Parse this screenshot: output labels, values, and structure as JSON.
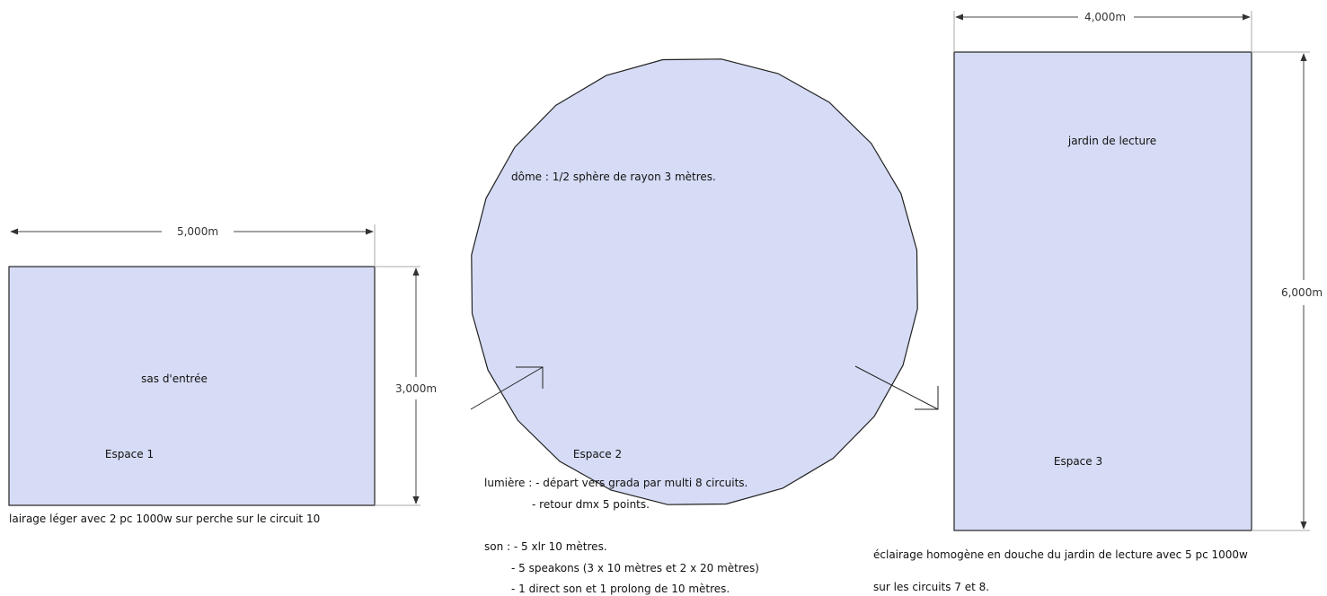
{
  "colors": {
    "room_fill": "#d6dcf5",
    "stroke": "#222222",
    "dimension": "#444444"
  },
  "espace1": {
    "dimension_width": "5,000m",
    "dimension_height": "3,000m",
    "name": "sas d'entrée",
    "label": "Espace 1",
    "note": "lairage léger avec 2 pc 1000w sur perche sur le circuit 10"
  },
  "espace2": {
    "description": "dôme : 1/2 sphère de rayon 3 mètres.",
    "label": "Espace 2",
    "lumiere": [
      "lumière : - départ vers grada par multi 8 circuits.",
      "- retour dmx 5 points."
    ],
    "son": [
      "son : - 5 xlr 10 mètres.",
      "- 5 speakons (3 x 10 mètres et 2 x 20 mètres)",
      "- 1 direct son et 1 prolong de 10 mètres."
    ]
  },
  "espace3": {
    "dimension_width": "4,000m",
    "dimension_height": "6,000m",
    "name": "jardin de lecture",
    "label": "Espace 3",
    "note": [
      "éclairage homogène en douche du jardin de lecture avec 5 pc 1000w",
      "sur les circuits 7 et 8."
    ]
  }
}
